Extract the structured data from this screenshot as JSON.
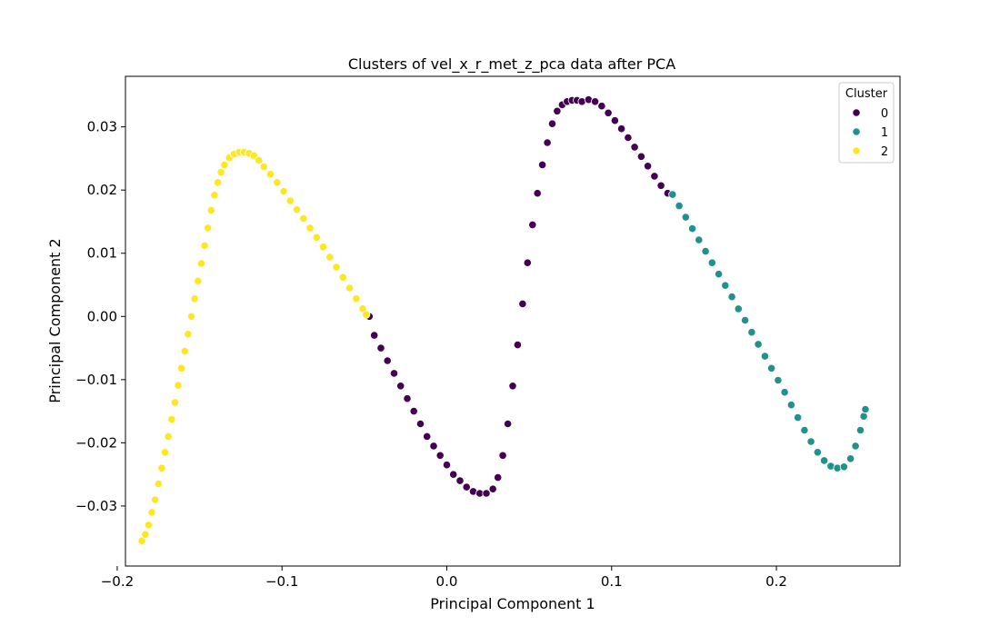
{
  "chart_data": {
    "type": "scatter",
    "title": "Clusters of vel_x_r_met_z_pca data after PCA",
    "xlabel": "Principal Component 1",
    "ylabel": "Principal Component 2",
    "xlim": [
      -0.195,
      0.275
    ],
    "ylim": [
      -0.0395,
      0.038
    ],
    "xticks": [
      -0.2,
      -0.1,
      0.0,
      0.1,
      0.2
    ],
    "xtick_labels": [
      "−0.2",
      "−0.1",
      "0.0",
      "0.1",
      "0.2"
    ],
    "yticks": [
      -0.03,
      -0.02,
      -0.01,
      0.0,
      0.01,
      0.02,
      0.03
    ],
    "ytick_labels": [
      "−0.03",
      "−0.02",
      "−0.01",
      "0.00",
      "0.01",
      "0.02",
      "0.03"
    ],
    "grid": false,
    "legend": {
      "title": "Cluster",
      "placement": "top-right",
      "entries": [
        {
          "label": "0",
          "color": "#440154"
        },
        {
          "label": "1",
          "color": "#21918c"
        },
        {
          "label": "2",
          "color": "#fde725"
        }
      ]
    },
    "series": [
      {
        "cluster": 0,
        "color": "#440154",
        "points": [
          [
            -0.047,
            0.0
          ],
          [
            -0.044,
            -0.003
          ],
          [
            -0.04,
            -0.005
          ],
          [
            -0.036,
            -0.007
          ],
          [
            -0.032,
            -0.009
          ],
          [
            -0.028,
            -0.011
          ],
          [
            -0.024,
            -0.013
          ],
          [
            -0.02,
            -0.015
          ],
          [
            -0.016,
            -0.017
          ],
          [
            -0.012,
            -0.019
          ],
          [
            -0.008,
            -0.0205
          ],
          [
            -0.004,
            -0.022
          ],
          [
            0.0,
            -0.0235
          ],
          [
            0.004,
            -0.025
          ],
          [
            0.008,
            -0.026
          ],
          [
            0.012,
            -0.027
          ],
          [
            0.016,
            -0.0277
          ],
          [
            0.02,
            -0.028
          ],
          [
            0.024,
            -0.028
          ],
          [
            0.028,
            -0.0273
          ],
          [
            0.031,
            -0.0255
          ],
          [
            0.034,
            -0.022
          ],
          [
            0.037,
            -0.017
          ],
          [
            0.04,
            -0.011
          ],
          [
            0.043,
            -0.0045
          ],
          [
            0.046,
            0.002
          ],
          [
            0.049,
            0.0085
          ],
          [
            0.052,
            0.0145
          ],
          [
            0.055,
            0.0195
          ],
          [
            0.058,
            0.024
          ],
          [
            0.061,
            0.0275
          ],
          [
            0.064,
            0.0305
          ],
          [
            0.067,
            0.0325
          ],
          [
            0.07,
            0.0335
          ],
          [
            0.073,
            0.034
          ],
          [
            0.076,
            0.0342
          ],
          [
            0.079,
            0.0342
          ],
          [
            0.082,
            0.034
          ],
          [
            0.086,
            0.0343
          ],
          [
            0.09,
            0.034
          ],
          [
            0.094,
            0.0333
          ],
          [
            0.098,
            0.0322
          ],
          [
            0.102,
            0.031
          ],
          [
            0.106,
            0.0297
          ],
          [
            0.11,
            0.0283
          ],
          [
            0.114,
            0.0268
          ],
          [
            0.118,
            0.0253
          ],
          [
            0.122,
            0.0238
          ],
          [
            0.126,
            0.0222
          ],
          [
            0.13,
            0.0207
          ],
          [
            0.134,
            0.0195
          ]
        ]
      },
      {
        "cluster": 1,
        "color": "#21918c",
        "points": [
          [
            0.137,
            0.0193
          ],
          [
            0.141,
            0.0175
          ],
          [
            0.145,
            0.0157
          ],
          [
            0.149,
            0.0139
          ],
          [
            0.153,
            0.0121
          ],
          [
            0.157,
            0.0103
          ],
          [
            0.161,
            0.0085
          ],
          [
            0.165,
            0.0067
          ],
          [
            0.169,
            0.0049
          ],
          [
            0.173,
            0.0031
          ],
          [
            0.177,
            0.0012
          ],
          [
            0.181,
            -0.0006
          ],
          [
            0.185,
            -0.0025
          ],
          [
            0.189,
            -0.0044
          ],
          [
            0.193,
            -0.0063
          ],
          [
            0.197,
            -0.0082
          ],
          [
            0.201,
            -0.0101
          ],
          [
            0.205,
            -0.012
          ],
          [
            0.209,
            -0.014
          ],
          [
            0.213,
            -0.016
          ],
          [
            0.217,
            -0.018
          ],
          [
            0.221,
            -0.0198
          ],
          [
            0.225,
            -0.0215
          ],
          [
            0.229,
            -0.0228
          ],
          [
            0.233,
            -0.0237
          ],
          [
            0.237,
            -0.024
          ],
          [
            0.241,
            -0.0238
          ],
          [
            0.245,
            -0.0225
          ],
          [
            0.248,
            -0.0205
          ],
          [
            0.251,
            -0.018
          ],
          [
            0.253,
            -0.0158
          ],
          [
            0.254,
            -0.0147
          ]
        ]
      },
      {
        "cluster": 2,
        "color": "#fde725",
        "points": [
          [
            -0.185,
            -0.0355
          ],
          [
            -0.183,
            -0.0345
          ],
          [
            -0.181,
            -0.033
          ],
          [
            -0.179,
            -0.031
          ],
          [
            -0.177,
            -0.029
          ],
          [
            -0.175,
            -0.0265
          ],
          [
            -0.173,
            -0.024
          ],
          [
            -0.171,
            -0.0215
          ],
          [
            -0.169,
            -0.019
          ],
          [
            -0.167,
            -0.0163
          ],
          [
            -0.165,
            -0.0136
          ],
          [
            -0.163,
            -0.0109
          ],
          [
            -0.161,
            -0.0082
          ],
          [
            -0.159,
            -0.0055
          ],
          [
            -0.157,
            -0.0028
          ],
          [
            -0.155,
            0.0
          ],
          [
            -0.153,
            0.0028
          ],
          [
            -0.151,
            0.0056
          ],
          [
            -0.149,
            0.0084
          ],
          [
            -0.147,
            0.0112
          ],
          [
            -0.145,
            0.014
          ],
          [
            -0.143,
            0.0168
          ],
          [
            -0.141,
            0.0192
          ],
          [
            -0.139,
            0.0212
          ],
          [
            -0.137,
            0.0228
          ],
          [
            -0.135,
            0.024
          ],
          [
            -0.132,
            0.0251
          ],
          [
            -0.129,
            0.0257
          ],
          [
            -0.126,
            0.026
          ],
          [
            -0.123,
            0.026
          ],
          [
            -0.12,
            0.0258
          ],
          [
            -0.117,
            0.0254
          ],
          [
            -0.114,
            0.0247
          ],
          [
            -0.111,
            0.0237
          ],
          [
            -0.107,
            0.0225
          ],
          [
            -0.103,
            0.0212
          ],
          [
            -0.099,
            0.0198
          ],
          [
            -0.095,
            0.0183
          ],
          [
            -0.091,
            0.0169
          ],
          [
            -0.087,
            0.0155
          ],
          [
            -0.083,
            0.014
          ],
          [
            -0.079,
            0.0125
          ],
          [
            -0.075,
            0.011
          ],
          [
            -0.071,
            0.0094
          ],
          [
            -0.067,
            0.0078
          ],
          [
            -0.063,
            0.0062
          ],
          [
            -0.059,
            0.0045
          ],
          [
            -0.055,
            0.0028
          ],
          [
            -0.051,
            0.0012
          ],
          [
            -0.049,
            0.0003
          ]
        ]
      }
    ]
  }
}
